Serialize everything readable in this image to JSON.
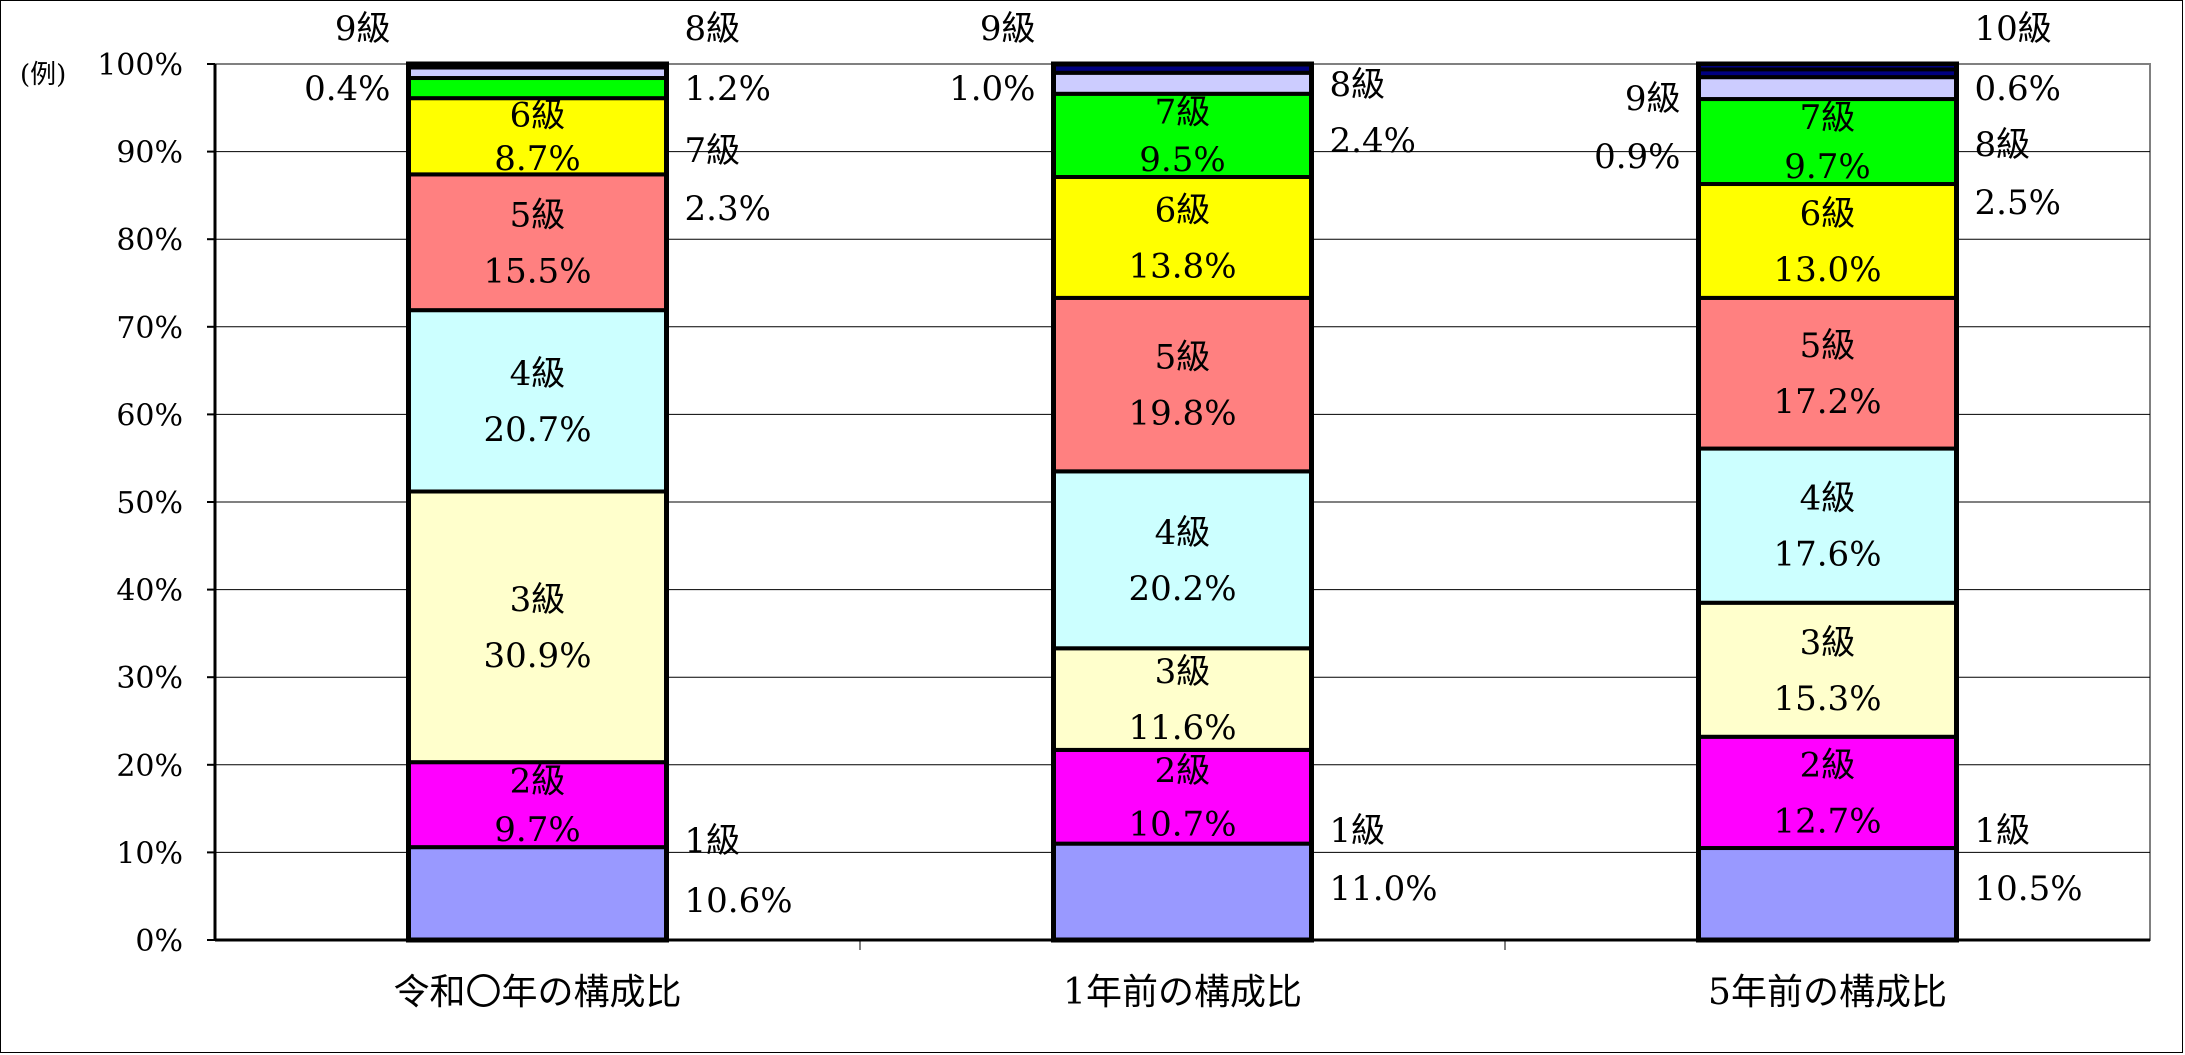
{
  "chart_data": {
    "type": "bar",
    "stacked": true,
    "legend_note": "(例)",
    "ylim": [
      0,
      100
    ],
    "yticks": [
      "0%",
      "10%",
      "20%",
      "30%",
      "40%",
      "50%",
      "60%",
      "70%",
      "80%",
      "90%",
      "100%"
    ],
    "grid": true,
    "categories": [
      "令和〇年の構成比",
      "1年前の構成比",
      "5年前の構成比"
    ],
    "series": [
      {
        "name": "1級",
        "color": "#9999ff",
        "values": [
          10.6,
          11.0,
          10.5
        ]
      },
      {
        "name": "2級",
        "color": "#ff00ff",
        "values": [
          9.7,
          10.7,
          12.7
        ]
      },
      {
        "name": "3級",
        "color": "#ffffcc",
        "values": [
          30.9,
          11.6,
          15.3
        ]
      },
      {
        "name": "4級",
        "color": "#ccffff",
        "values": [
          20.7,
          20.2,
          17.6
        ]
      },
      {
        "name": "5級",
        "color": "#ff8080",
        "values": [
          15.5,
          19.8,
          17.2
        ]
      },
      {
        "name": "6級",
        "color": "#ffff00",
        "values": [
          8.7,
          13.8,
          13.0
        ]
      },
      {
        "name": "7級",
        "color": "#00ff00",
        "values": [
          2.3,
          9.5,
          9.7
        ]
      },
      {
        "name": "8級",
        "color": "#ccccff",
        "values": [
          1.2,
          2.4,
          2.5
        ]
      },
      {
        "name": "9級",
        "color": "#000080",
        "values": [
          0.4,
          1.0,
          0.9
        ]
      },
      {
        "name": "10級",
        "color": "#0000ff",
        "values": [
          null,
          null,
          0.6
        ]
      }
    ],
    "value_labels": [
      [
        "10.6%",
        "9.7%",
        "30.9%",
        "20.7%",
        "15.5%",
        "8.7%",
        "2.3%",
        "1.2%",
        "0.4%",
        null
      ],
      [
        "11.0%",
        "10.7%",
        "11.6%",
        "20.2%",
        "19.8%",
        "13.8%",
        "9.5%",
        "2.4%",
        "1.0%",
        null
      ],
      [
        "10.5%",
        "12.7%",
        "15.3%",
        "17.6%",
        "17.2%",
        "13.0%",
        "9.7%",
        "2.5%",
        "0.9%",
        "0.6%"
      ]
    ]
  }
}
